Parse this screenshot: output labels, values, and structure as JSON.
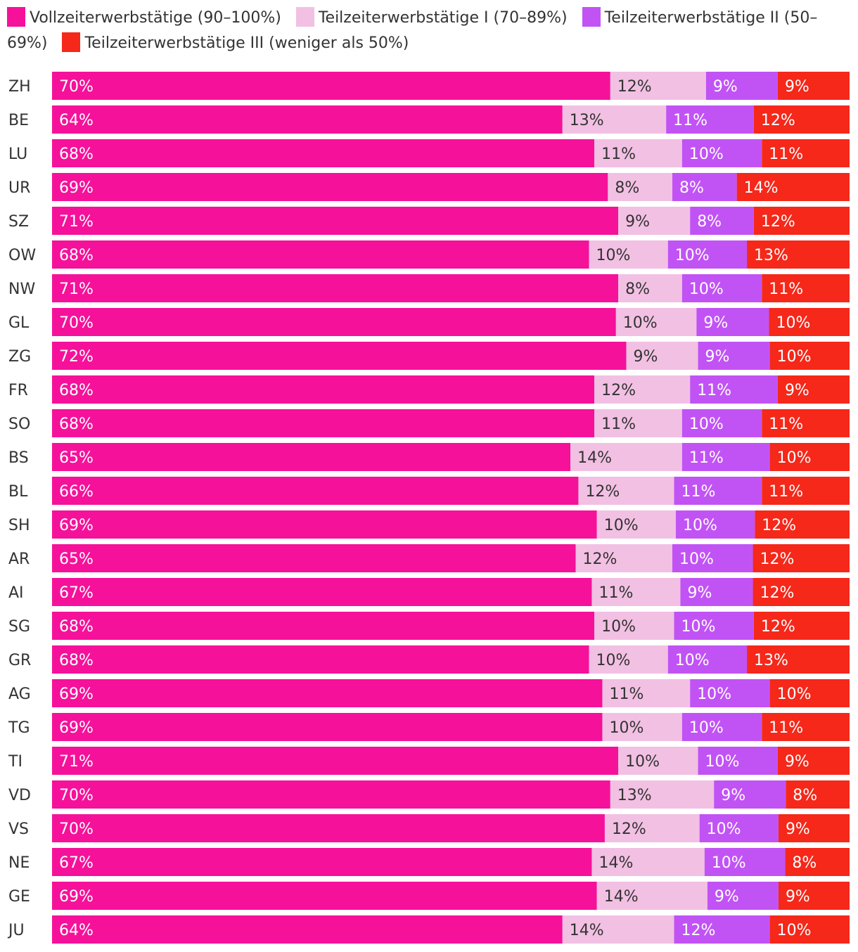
{
  "chart_data": {
    "type": "bar",
    "orientation": "horizontal",
    "stacked": true,
    "title": "",
    "xlabel": "",
    "ylabel": "",
    "value_suffix": "%",
    "categories": [
      "ZH",
      "BE",
      "LU",
      "UR",
      "SZ",
      "OW",
      "NW",
      "GL",
      "ZG",
      "FR",
      "SO",
      "BS",
      "BL",
      "SH",
      "AR",
      "AI",
      "SG",
      "GR",
      "AG",
      "TG",
      "TI",
      "VD",
      "VS",
      "NE",
      "GE",
      "JU"
    ],
    "series": [
      {
        "name": "Vollzeiterwerbstätige (90–100%)",
        "color": "#f5119a",
        "label_color": "#ffffff",
        "values": [
          70,
          64,
          68,
          69,
          71,
          68,
          71,
          70,
          72,
          68,
          68,
          65,
          66,
          69,
          65,
          67,
          68,
          68,
          69,
          69,
          71,
          70,
          70,
          67,
          69,
          64
        ]
      },
      {
        "name": "Teilzeiterwerbstätige I (70–89%)",
        "color": "#f2c0e3",
        "label_color": "#333333",
        "values": [
          12,
          13,
          11,
          8,
          9,
          10,
          8,
          10,
          9,
          12,
          11,
          14,
          12,
          10,
          12,
          11,
          10,
          10,
          11,
          10,
          10,
          13,
          12,
          14,
          14,
          14
        ]
      },
      {
        "name": "Teilzeiterwerbstätige II (50–69%)",
        "color": "#c153f5",
        "label_color": "#ffffff",
        "values": [
          9,
          11,
          10,
          8,
          8,
          10,
          10,
          9,
          9,
          11,
          10,
          11,
          11,
          10,
          10,
          9,
          10,
          10,
          10,
          10,
          10,
          9,
          10,
          10,
          9,
          12
        ]
      },
      {
        "name": "Teilzeiterwerbstätige III (weniger als 50%)",
        "color": "#f5281a",
        "label_color": "#ffffff",
        "values": [
          9,
          12,
          11,
          14,
          12,
          13,
          11,
          10,
          10,
          9,
          11,
          10,
          11,
          12,
          12,
          12,
          12,
          13,
          10,
          11,
          9,
          8,
          9,
          8,
          9,
          10
        ]
      }
    ],
    "legend_position": "top",
    "grid": false
  }
}
